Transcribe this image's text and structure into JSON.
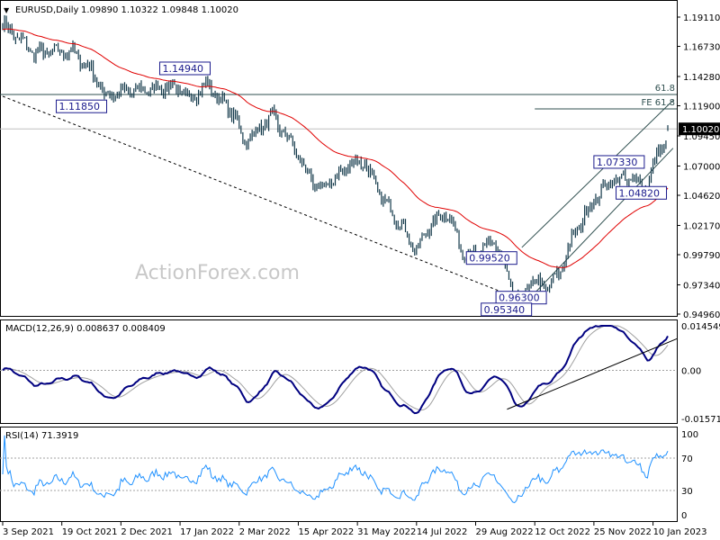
{
  "header": {
    "symbol": "EURUSD,Daily",
    "ohlc": "1.09890 1.10322 1.09848 1.10020"
  },
  "watermark": "ActionForex.com",
  "colors": {
    "bars": "#13394a",
    "ma": "#e00000",
    "macd": "#000080",
    "signal": "#a0a0a0",
    "rsi": "#1e90ff",
    "annotation": "#1a1a8c"
  },
  "chart_data": [
    {
      "type": "ohlc-bar",
      "symbol": "EURUSD",
      "timeframe": "Daily",
      "last": {
        "open": 1.0989,
        "high": 1.10322,
        "low": 1.09848,
        "close": 1.1002
      },
      "current_price_label": "1.10020",
      "y_ticks": [
        "1.19110",
        "1.16730",
        "1.14280",
        "1.11900",
        "1.09450",
        "1.07000",
        "1.04620",
        "1.02170",
        "0.99790",
        "0.97340",
        "0.94960"
      ],
      "ylim": [
        0.9496,
        1.1911
      ],
      "x_ticks": [
        {
          "label": "3 Sep 2021",
          "date": "2021-09-03"
        },
        {
          "label": "19 Oct 2021",
          "date": "2021-10-19"
        },
        {
          "label": "2 Dec 2021",
          "date": "2021-12-02"
        },
        {
          "label": "17 Jan 2022",
          "date": "2022-01-17"
        },
        {
          "label": "2 Mar 2022",
          "date": "2022-03-02"
        },
        {
          "label": "15 Apr 2022",
          "date": "2022-04-15"
        },
        {
          "label": "31 May 2022",
          "date": "2022-05-31"
        },
        {
          "label": "14 Jul 2022",
          "date": "2022-07-14"
        },
        {
          "label": "29 Aug 2022",
          "date": "2022-08-29"
        },
        {
          "label": "12 Oct 2022",
          "date": "2022-10-12"
        },
        {
          "label": "25 Nov 2022",
          "date": "2022-11-25"
        },
        {
          "label": "10 Jan 2023",
          "date": "2023-01-10"
        }
      ],
      "date_range": [
        "2021-09-03",
        "2023-01-20"
      ],
      "close_path": [
        [
          "2021-09-03",
          1.185
        ],
        [
          "2021-09-28",
          1.162
        ],
        [
          "2021-10-26",
          1.163
        ],
        [
          "2021-11-09",
          1.15
        ],
        [
          "2021-11-19",
          1.128
        ],
        [
          "2021-12-13",
          1.131
        ],
        [
          "2022-01-10",
          1.135
        ],
        [
          "2022-01-24",
          1.125
        ],
        [
          "2022-02-07",
          1.136
        ],
        [
          "2022-02-28",
          1.11
        ],
        [
          "2022-03-07",
          1.089
        ],
        [
          "2022-03-28",
          1.11
        ],
        [
          "2022-04-11",
          1.089
        ],
        [
          "2022-04-28",
          1.052
        ],
        [
          "2022-05-09",
          1.055
        ],
        [
          "2022-05-26",
          1.073
        ],
        [
          "2022-06-06",
          1.073
        ],
        [
          "2022-06-16",
          1.047
        ],
        [
          "2022-07-04",
          1.022
        ],
        [
          "2022-07-14",
          1.0
        ],
        [
          "2022-07-25",
          1.022
        ],
        [
          "2022-08-08",
          1.033
        ],
        [
          "2022-08-18",
          1.0
        ],
        [
          "2022-08-29",
          0.997
        ],
        [
          "2022-09-12",
          1.01
        ],
        [
          "2022-09-28",
          0.959
        ],
        [
          "2022-10-12",
          0.977
        ],
        [
          "2022-10-21",
          0.97
        ],
        [
          "2022-11-01",
          0.985
        ],
        [
          "2022-11-10",
          1.014
        ],
        [
          "2022-11-24",
          1.04
        ],
        [
          "2022-12-08",
          1.059
        ],
        [
          "2022-12-29",
          1.059
        ],
        [
          "2023-01-05",
          1.052
        ],
        [
          "2023-01-13",
          1.085
        ],
        [
          "2023-01-19",
          1.088
        ],
        [
          "2023-01-20",
          1.1002
        ]
      ],
      "price_labels": [
        {
          "text": "1.14940",
          "date": "2021-12-31",
          "price": 1.1494
        },
        {
          "text": "1.11850",
          "date": "2021-10-14",
          "price": 1.1185
        },
        {
          "text": "1.07330",
          "date": "2022-11-25",
          "price": 1.0733
        },
        {
          "text": "1.04820",
          "date": "2022-12-13",
          "price": 1.0482
        },
        {
          "text": "0.99520",
          "date": "2022-08-22",
          "price": 0.9952
        },
        {
          "text": "0.96300",
          "date": "2022-09-13",
          "price": 0.963
        },
        {
          "text": "0.95340",
          "date": "2022-09-01",
          "price": 0.9534
        }
      ],
      "levels": [
        {
          "text": "61.8",
          "price": 1.1282,
          "from": "2021-09-03"
        },
        {
          "text": "FE 61.8",
          "price": 1.1165,
          "from": "2022-10-12"
        }
      ],
      "trendlines": [
        {
          "style": "dashed",
          "from": [
            "2021-09-03",
            1.1267
          ],
          "to": [
            "2022-09-28",
            0.963
          ]
        },
        {
          "style": "solid",
          "from": [
            "2022-10-03",
            1.0038
          ],
          "to": [
            "2023-01-24",
            1.1234
          ]
        },
        {
          "style": "solid",
          "from": [
            "2022-10-10",
            0.9636
          ],
          "to": [
            "2023-01-24",
            1.0845
          ]
        }
      ]
    },
    {
      "type": "line",
      "indicator": "MACD",
      "label": "MACD(12,26,9) 0.008637 0.008409",
      "y_ticks": [
        "0.014549",
        "0.00",
        "-0.015712"
      ],
      "ylim": [
        -0.015712,
        0.014549
      ],
      "trendline": {
        "from": [
          "2022-09-21",
          -0.0127
        ],
        "to": [
          "2023-01-24",
          0.0103
        ]
      }
    },
    {
      "type": "line",
      "indicator": "RSI",
      "label": "RSI(14) 71.3919",
      "y_ticks": [
        "100",
        "70",
        "30",
        "0"
      ],
      "ylim": [
        0,
        100
      ],
      "levels": [
        70,
        30
      ]
    }
  ]
}
